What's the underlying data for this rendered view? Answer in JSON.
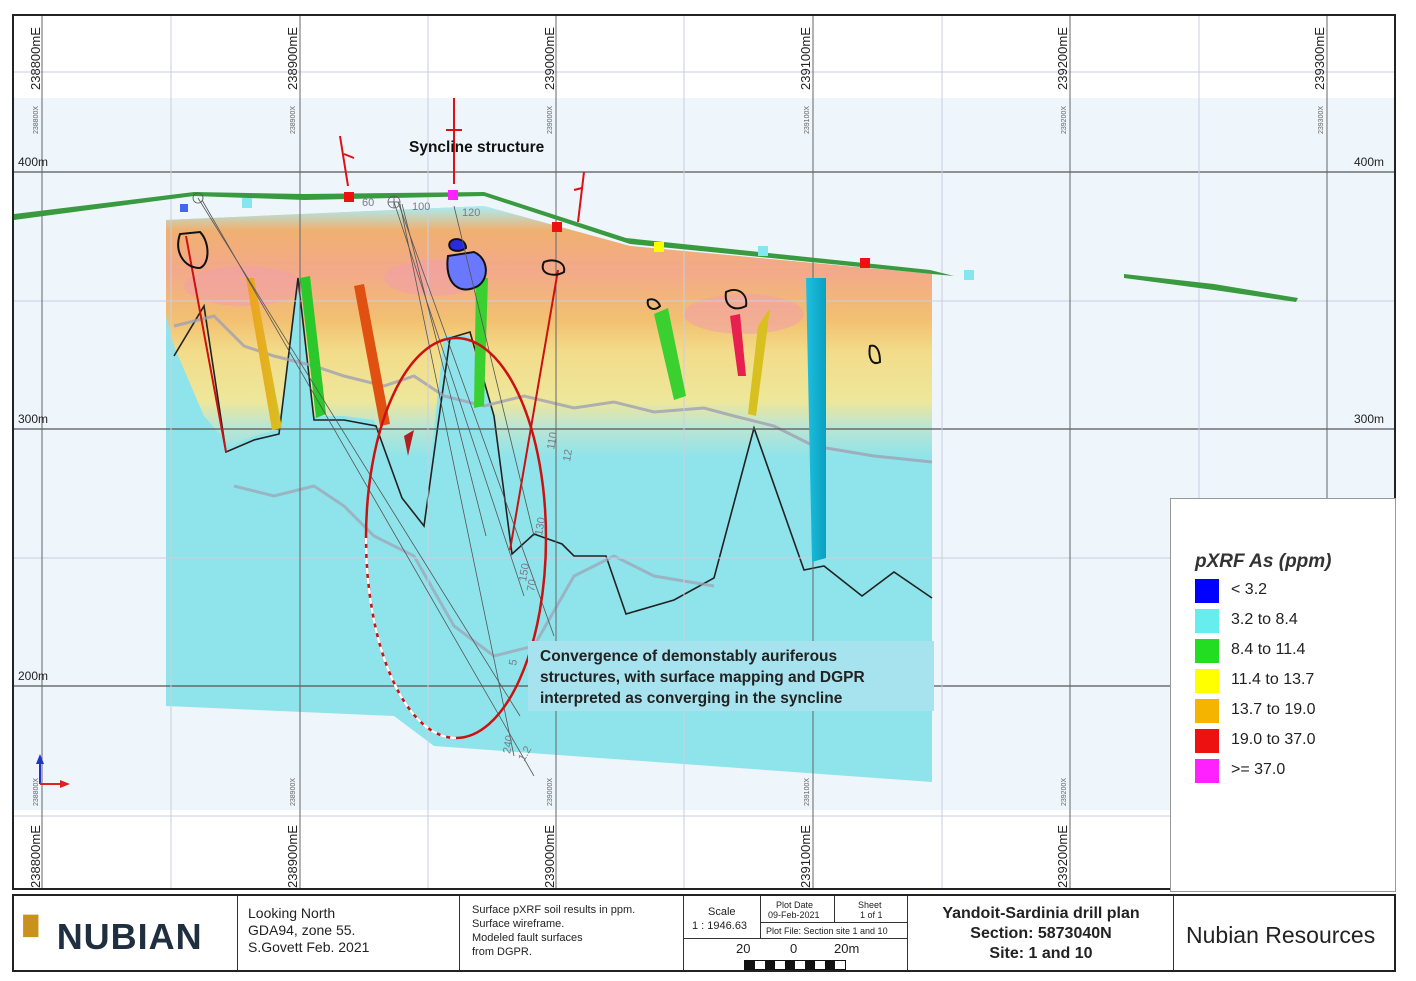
{
  "map": {
    "easting_top_labels": [
      "238800mE",
      "238900mE",
      "239000mE",
      "239100mE",
      "239200mE",
      "239300mE"
    ],
    "easting_bottom_labels": [
      "238800mE",
      "238900mE",
      "239000mE",
      "239100mE",
      "239200mE"
    ],
    "elevation_labels_left": [
      "400m",
      "300m",
      "200m"
    ],
    "elevation_labels_right": [
      "400m",
      "300m"
    ],
    "small_grid_labels_top": [
      "238800X",
      "238900X",
      "239000X",
      "239100X",
      "239200X",
      "239300X"
    ],
    "small_grid_labels_bottom": [
      "238800X",
      "238900X",
      "239000X",
      "239100X",
      "239200X"
    ],
    "drill_labels": [
      "60",
      "100",
      "120",
      "110",
      "12",
      "130",
      "150",
      "70",
      "5",
      "240",
      "1.2"
    ],
    "syncline_label": "Syncline structure",
    "callout_lines": [
      "Convergence of demonstably auriferous",
      "structures, with surface mapping and DGPR",
      "interpreted as converging in the syncline"
    ],
    "colors": {
      "cyan": "#84e6ee",
      "blue": "#0000ff",
      "green": "#22dd22",
      "yellow": "#ffff00",
      "orange": "#f5b000",
      "red": "#ee1111",
      "magenta": "#ff22ff",
      "surface_green": "#3a9a40"
    }
  },
  "legend": {
    "title": "pXRF As (ppm)",
    "items": [
      {
        "label": "< 3.2",
        "color": "#0000ff"
      },
      {
        "label": "3.2 to 8.4",
        "color": "#66eeee"
      },
      {
        "label": "8.4 to 11.4",
        "color": "#22dd22"
      },
      {
        "label": "11.4 to 13.7",
        "color": "#ffff00"
      },
      {
        "label": "13.7 to 19.0",
        "color": "#f5b400"
      },
      {
        "label": "19.0 to 37.0",
        "color": "#ee1111"
      },
      {
        "label": ">= 37.0",
        "color": "#ff22ff"
      }
    ]
  },
  "title_block": {
    "logo_text": "NUBIAN",
    "view_lines": [
      "Looking North",
      "GDA94, zone 55.",
      "S.Govett Feb. 2021"
    ],
    "notes_lines": [
      "Surface pXRF soil results in ppm.",
      "Surface wireframe.",
      "Modeled  fault surfaces",
      "from DGPR."
    ],
    "scale_label": "Scale",
    "scale_value": "1 : 1946.63",
    "plot_date_label": "Plot Date",
    "plot_date_value": "09-Feb-2021",
    "sheet_label": "Sheet",
    "sheet_value": "1 of 1",
    "plot_file": "Plot File: Section site 1 and 10",
    "scalebar_labels": [
      "20",
      "0",
      "20m"
    ],
    "plan_title": "Yandoit-Sardinia drill plan",
    "section": "Section:  5873040N",
    "site": "Site: 1 and 10",
    "company": "Nubian Resources"
  }
}
